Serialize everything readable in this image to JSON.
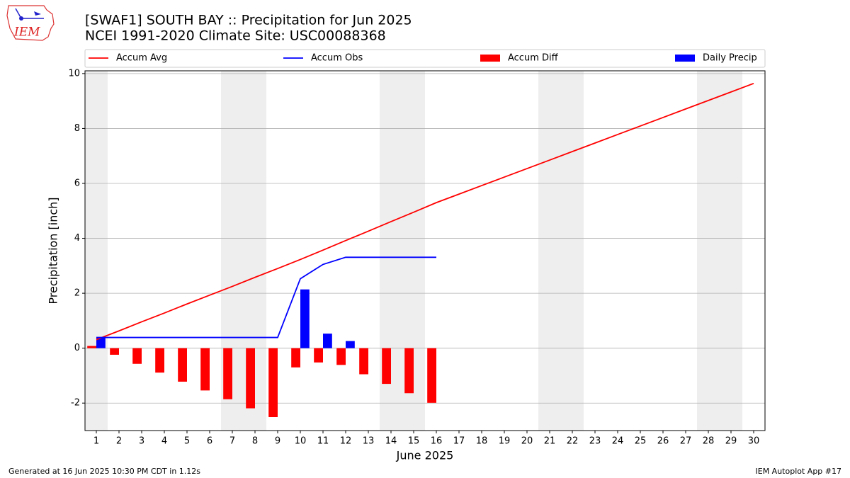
{
  "logo_text": "IEM",
  "footer_left": "Generated at 16 Jun 2025 10:30 PM CDT in 1.12s",
  "footer_right": "IEM Autoplot App #17",
  "chart_data": {
    "type": "combo",
    "title": "[SWAF1] SOUTH BAY :: Precipitation for Jun 2025",
    "subtitle": "NCEI 1991-2020 Climate Site: USC00088368",
    "x_label": "June 2025",
    "y_label": "Precipitation [inch]",
    "x": [
      1,
      2,
      3,
      4,
      5,
      6,
      7,
      8,
      9,
      10,
      11,
      12,
      13,
      14,
      15,
      16,
      17,
      18,
      19,
      20,
      21,
      22,
      23,
      24,
      25,
      26,
      27,
      28,
      29,
      30
    ],
    "xlim": [
      0.5,
      30.5
    ],
    "xticks": [
      1,
      2,
      3,
      4,
      5,
      6,
      7,
      8,
      9,
      10,
      11,
      12,
      13,
      14,
      15,
      16,
      17,
      18,
      19,
      20,
      21,
      22,
      23,
      24,
      25,
      26,
      27,
      28,
      29,
      30
    ],
    "ylim": [
      -3,
      10.1
    ],
    "yticks": [
      -2,
      0,
      2,
      4,
      6,
      8,
      10
    ],
    "grid": true,
    "weekend_days": [
      1,
      7,
      8,
      14,
      15,
      21,
      22,
      28,
      29
    ],
    "weekend_color": "#eeeeee",
    "series": [
      {
        "name": "Accum Avg",
        "kind": "line",
        "color": "#ff0000",
        "values": [
          0.31,
          0.63,
          0.96,
          1.28,
          1.61,
          1.93,
          2.25,
          2.58,
          2.9,
          3.23,
          3.57,
          3.92,
          4.26,
          4.61,
          4.95,
          5.3,
          5.61,
          5.92,
          6.23,
          6.54,
          6.85,
          7.16,
          7.47,
          7.78,
          8.09,
          8.4,
          8.71,
          9.02,
          9.33,
          9.64
        ]
      },
      {
        "name": "Accum Obs",
        "kind": "line",
        "color": "#0000ff",
        "values": [
          0.39,
          0.39,
          0.39,
          0.39,
          0.39,
          0.39,
          0.39,
          0.39,
          0.39,
          2.53,
          3.05,
          3.31,
          3.31,
          3.31,
          3.31,
          3.31,
          null,
          null,
          null,
          null,
          null,
          null,
          null,
          null,
          null,
          null,
          null,
          null,
          null,
          null
        ]
      },
      {
        "name": "Accum Diff",
        "kind": "bar",
        "side": "left",
        "color": "#ff0000",
        "values": [
          0.08,
          -0.24,
          -0.57,
          -0.89,
          -1.22,
          -1.54,
          -1.86,
          -2.19,
          -2.51,
          -0.7,
          -0.52,
          -0.61,
          -0.95,
          -1.3,
          -1.64,
          -1.99,
          null,
          null,
          null,
          null,
          null,
          null,
          null,
          null,
          null,
          null,
          null,
          null,
          null,
          null
        ]
      },
      {
        "name": "Daily Precip",
        "kind": "bar",
        "side": "right",
        "color": "#0000ff",
        "values": [
          0.39,
          0,
          0,
          0,
          0,
          0,
          0,
          0,
          0,
          2.14,
          0.53,
          0.26,
          0,
          0,
          0,
          0,
          null,
          null,
          null,
          null,
          null,
          null,
          null,
          null,
          null,
          null,
          null,
          null,
          null,
          null
        ]
      }
    ]
  }
}
